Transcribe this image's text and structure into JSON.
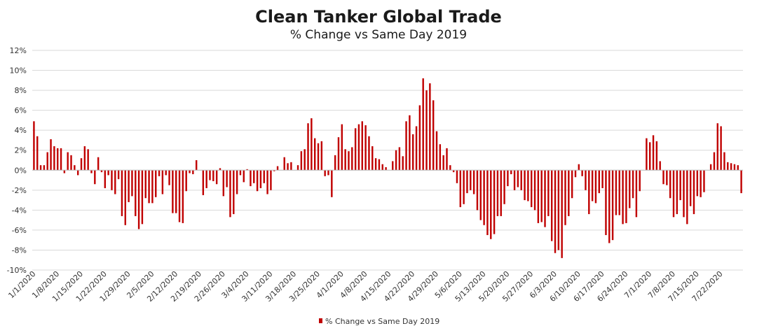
{
  "chart_data": {
    "type": "bar",
    "title": "Clean Tanker Global Trade",
    "subtitle": "% Change vs Same Day 2019",
    "xlabel": "",
    "ylabel": "",
    "ylim": [
      -10,
      12
    ],
    "y_ticks": [
      -10,
      -8,
      -6,
      -4,
      -2,
      0,
      2,
      4,
      6,
      8,
      10,
      12
    ],
    "y_tick_labels": [
      "-10%",
      "-8%",
      "-6%",
      "-4%",
      "-2%",
      "0%",
      "2%",
      "4%",
      "6%",
      "8%",
      "10%",
      "12%"
    ],
    "x_tick_labels": [
      "1/1/2020",
      "1/8/2020",
      "1/15/2020",
      "1/22/2020",
      "1/29/2020",
      "2/5/2020",
      "2/12/2020",
      "2/19/2020",
      "2/26/2020",
      "3/4/2020",
      "3/11/2020",
      "3/18/2020",
      "3/25/2020",
      "4/1/2020",
      "4/8/2020",
      "4/15/2020",
      "4/22/2020",
      "4/29/2020",
      "5/6/2020",
      "5/13/2020",
      "5/20/2020",
      "5/27/2020",
      "6/3/2020",
      "6/10/2020",
      "6/17/2020",
      "6/24/2020",
      "7/1/2020",
      "7/8/2020",
      "7/15/2020",
      "7/22/2020"
    ],
    "grid": true,
    "legend_position": "bottom",
    "series": [
      {
        "name": "% Change vs Same Day 2019",
        "color": "#c00000",
        "values": [
          4.9,
          3.4,
          0.5,
          0.5,
          1.8,
          3.1,
          2.4,
          2.2,
          2.2,
          -0.3,
          1.8,
          1.5,
          0.5,
          -0.5,
          1.2,
          2.4,
          2.1,
          -0.3,
          -1.4,
          1.3,
          -0.2,
          -1.8,
          -0.5,
          -2.0,
          -2.4,
          -0.9,
          -4.6,
          -5.5,
          -3.2,
          -2.6,
          -4.6,
          -5.9,
          -5.4,
          -2.8,
          -3.3,
          -3.3,
          -2.7,
          -0.6,
          -2.4,
          -0.5,
          -1.5,
          -4.3,
          -4.3,
          -5.2,
          -5.3,
          -2.1,
          -0.3,
          -0.4,
          1.0,
          0.0,
          -2.5,
          -1.8,
          -1.0,
          -1.1,
          -1.4,
          0.2,
          -2.6,
          -1.7,
          -4.7,
          -4.4,
          -2.4,
          -0.5,
          -1.2,
          0.1,
          -1.6,
          -1.3,
          -2.1,
          -1.8,
          -1.3,
          -2.4,
          -2.0,
          -0.1,
          0.4,
          0.0,
          1.3,
          0.7,
          0.8,
          0.0,
          0.5,
          1.9,
          2.1,
          4.7,
          5.2,
          3.2,
          2.7,
          2.9,
          -0.6,
          -0.5,
          -2.7,
          1.5,
          3.3,
          4.6,
          2.1,
          1.9,
          2.3,
          4.2,
          4.6,
          4.9,
          4.5,
          3.4,
          2.4,
          1.2,
          1.1,
          0.6,
          0.3,
          0.0,
          0.9,
          2.0,
          2.3,
          1.4,
          4.9,
          5.5,
          3.6,
          4.4,
          6.5,
          9.2,
          8.0,
          8.7,
          7.0,
          3.9,
          2.6,
          1.5,
          2.2,
          0.5,
          -0.2,
          -1.3,
          -3.7,
          -3.4,
          -2.3,
          -2.0,
          -2.4,
          -4.0,
          -5.0,
          -5.5,
          -6.5,
          -6.9,
          -6.4,
          -4.6,
          -4.6,
          -3.4,
          -1.6,
          -0.4,
          -2.0,
          -1.7,
          -2.0,
          -3.0,
          -3.1,
          -3.7,
          -4.0,
          -5.3,
          -5.2,
          -5.7,
          -4.6,
          -7.1,
          -8.3,
          -8.0,
          -8.8,
          -5.5,
          -4.6,
          -2.8,
          -0.7,
          0.6,
          -0.6,
          -2.0,
          -4.4,
          -3.1,
          -3.3,
          -2.3,
          -1.8,
          -6.5,
          -7.3,
          -7.0,
          -4.5,
          -4.5,
          -5.4,
          -5.3,
          -3.8,
          -2.8,
          -4.7,
          -2.1,
          0.0,
          3.2,
          2.8,
          3.5,
          2.9,
          0.9,
          -1.4,
          -1.5,
          -2.8,
          -4.7,
          -4.4,
          -3.0,
          -4.7,
          -5.4,
          -3.6,
          -4.4,
          -2.6,
          -2.7,
          -2.2,
          0.0,
          0.6,
          1.8,
          4.7,
          4.4,
          1.8,
          0.8,
          0.7,
          0.6,
          0.5,
          -2.3
        ]
      }
    ]
  }
}
